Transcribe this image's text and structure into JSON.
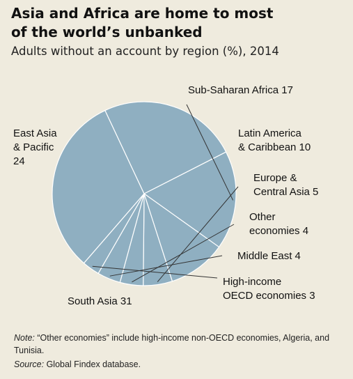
{
  "title_line1": "Asia and Africa are home to most",
  "title_line2": "of the world’s unbanked",
  "subtitle": "Adults without an account by region (%), 2014",
  "note_label": "Note:",
  "note_text": " “Other economies” include high-income non-OECD economies, Algeria, and Tunisia.",
  "source_label": "Source:",
  "source_text": " Global Findex database.",
  "colors": {
    "slice_fill": "#8fafc1",
    "slice_edge": "#ffffff",
    "leader": "#333333",
    "background": "#efebde"
  },
  "chart_data": {
    "type": "pie",
    "title": "Asia and Africa are home to most of the world’s unbanked",
    "subtitle": "Adults without an account by region (%), 2014",
    "unit": "%",
    "slices": [
      {
        "label_lines": [
          "Sub-Saharan Africa 17"
        ],
        "value": 17
      },
      {
        "label_lines": [
          "Latin America",
          "& Caribbean 10"
        ],
        "value": 10
      },
      {
        "label_lines": [
          "Europe &",
          "Central Asia 5"
        ],
        "value": 5
      },
      {
        "label_lines": [
          "Other",
          "economies 4"
        ],
        "value": 4
      },
      {
        "label_lines": [
          "Middle East 4"
        ],
        "value": 4
      },
      {
        "label_lines": [
          "High-income",
          "OECD economies 3"
        ],
        "value": 3
      },
      {
        "label_lines": [
          "South Asia 31"
        ],
        "value": 31
      },
      {
        "label_lines": [
          "East Asia",
          "& Pacific",
          "24"
        ],
        "value": 24
      }
    ]
  }
}
